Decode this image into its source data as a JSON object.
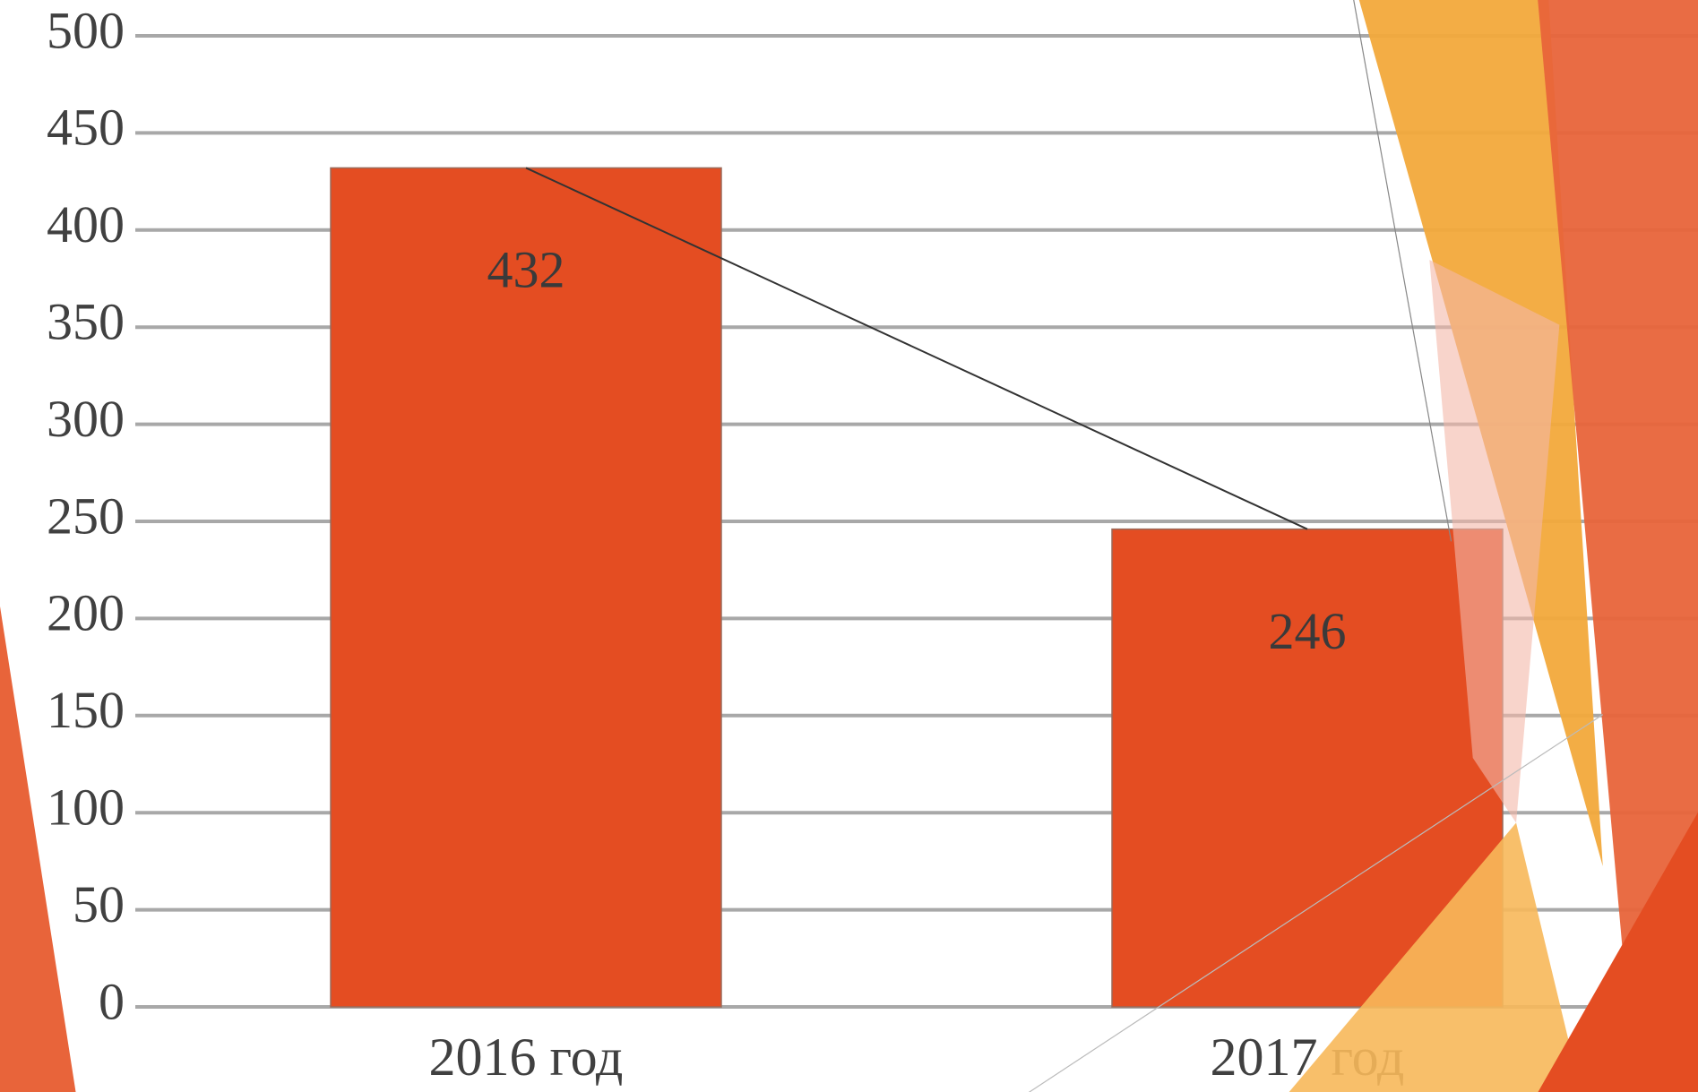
{
  "chart_data": {
    "type": "bar",
    "categories": [
      "2016 год",
      "2017 год"
    ],
    "values": [
      432,
      246
    ],
    "color": "#e44d22",
    "ylim": [
      0,
      500
    ],
    "yticks": [
      0,
      50,
      100,
      150,
      200,
      250,
      300,
      350,
      400,
      450,
      500
    ],
    "grid": true,
    "connector_line": true
  }
}
